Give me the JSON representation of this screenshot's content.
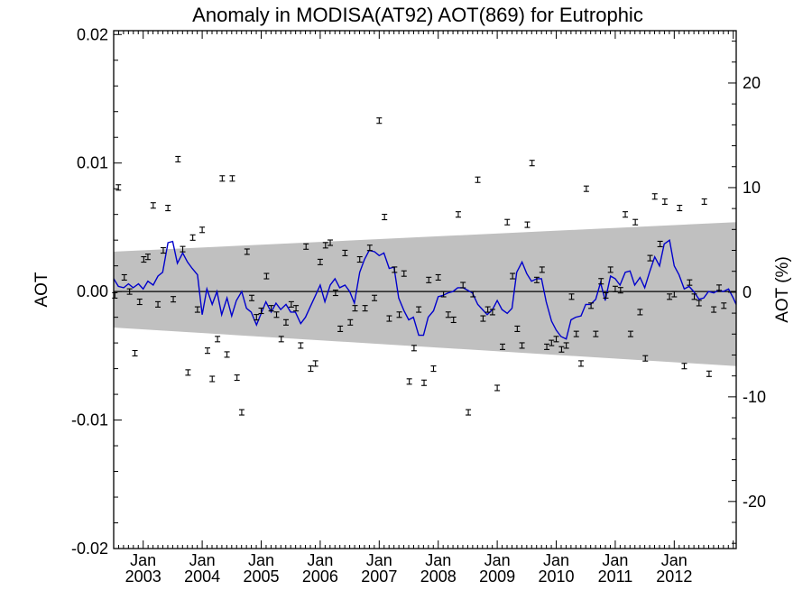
{
  "chart_data": {
    "type": "scatter",
    "title": "Anomaly in MODISA(AT92) AOT(869) for Eutrophic",
    "ylabel": "AOT",
    "y2label": "AOT (%)",
    "xlim": [
      2002.5,
      2013.05
    ],
    "ylim": [
      -0.02,
      0.0203
    ],
    "y2lim": [
      -24.5,
      25
    ],
    "y_ticks": [
      "0.02",
      "0.01",
      "0.00",
      "-0.01",
      "-0.02"
    ],
    "y2_ticks": [
      "20",
      "10",
      "0",
      "-10",
      "-20"
    ],
    "x_ticks": [
      {
        "year": 2003,
        "month": "Jan",
        "label": "2003"
      },
      {
        "year": 2004,
        "month": "Jan",
        "label": "2004"
      },
      {
        "year": 2005,
        "month": "Jan",
        "label": "2005"
      },
      {
        "year": 2006,
        "month": "Jan",
        "label": "2006"
      },
      {
        "year": 2007,
        "month": "Jan",
        "label": "2007"
      },
      {
        "year": 2008,
        "month": "Jan",
        "label": "2008"
      },
      {
        "year": 2009,
        "month": "Jan",
        "label": "2009"
      },
      {
        "year": 2010,
        "month": "Jan",
        "label": "2010"
      },
      {
        "year": 2011,
        "month": "Jan",
        "label": "2011"
      },
      {
        "year": 2012,
        "month": "Jan",
        "label": "2012"
      }
    ],
    "band": {
      "start_upper": 0.0031,
      "start_lower": -0.0028,
      "end_upper": 0.0054,
      "end_lower": -0.0058,
      "color": "#c0c0c0"
    },
    "series": [
      {
        "kind": "points_with_errorbars",
        "color": "#000000",
        "points": [
          [
            2002.52,
            -0.0003
          ],
          [
            2002.58,
            0.0081
          ],
          [
            2002.68,
            0.0011
          ],
          [
            2002.77,
            0.0
          ],
          [
            2002.86,
            -0.0048
          ],
          [
            2002.94,
            -0.0008
          ],
          [
            2003.01,
            0.0025
          ],
          [
            2003.08,
            0.0027
          ],
          [
            2003.17,
            0.0067
          ],
          [
            2003.25,
            -0.001
          ],
          [
            2003.34,
            0.0032
          ],
          [
            2003.42,
            0.0065
          ],
          [
            2003.51,
            -0.0006
          ],
          [
            2003.59,
            0.0103
          ],
          [
            2003.67,
            0.0033
          ],
          [
            2003.76,
            -0.0063
          ],
          [
            2003.84,
            0.0042
          ],
          [
            2003.92,
            -0.0014
          ],
          [
            2004.0,
            0.0048
          ],
          [
            2004.09,
            -0.0046
          ],
          [
            2004.17,
            -0.0068
          ],
          [
            2004.26,
            -0.0037
          ],
          [
            2004.34,
            0.0088
          ],
          [
            2004.42,
            -0.0049
          ],
          [
            2004.51,
            0.0088
          ],
          [
            2004.59,
            -0.0067
          ],
          [
            2004.67,
            -0.0094
          ],
          [
            2004.76,
            0.0031
          ],
          [
            2004.84,
            -0.0005
          ],
          [
            2004.92,
            -0.002
          ],
          [
            2005.0,
            -0.0015
          ],
          [
            2005.09,
            0.0012
          ],
          [
            2005.17,
            -0.0013
          ],
          [
            2005.26,
            -0.0018
          ],
          [
            2005.34,
            -0.0037
          ],
          [
            2005.42,
            -0.0024
          ],
          [
            2005.51,
            -0.001
          ],
          [
            2005.59,
            -0.0013
          ],
          [
            2005.67,
            -0.0042
          ],
          [
            2005.76,
            0.0035
          ],
          [
            2005.84,
            -0.006
          ],
          [
            2005.92,
            -0.0056
          ],
          [
            2006.0,
            0.0023
          ],
          [
            2006.09,
            0.0036
          ],
          [
            2006.17,
            0.0038
          ],
          [
            2006.26,
            -0.0001
          ],
          [
            2006.34,
            -0.0029
          ],
          [
            2006.42,
            0.003
          ],
          [
            2006.51,
            -0.0024
          ],
          [
            2006.59,
            -0.0013
          ],
          [
            2006.67,
            0.0025
          ],
          [
            2006.76,
            -0.0013
          ],
          [
            2006.84,
            0.0034
          ],
          [
            2006.92,
            -0.0005
          ],
          [
            2007.0,
            0.0133
          ],
          [
            2007.09,
            0.0058
          ],
          [
            2007.17,
            -0.0021
          ],
          [
            2007.26,
            0.0017
          ],
          [
            2007.34,
            -0.0018
          ],
          [
            2007.42,
            0.0014
          ],
          [
            2007.51,
            -0.007
          ],
          [
            2007.59,
            -0.0044
          ],
          [
            2007.67,
            -0.0014
          ],
          [
            2007.76,
            -0.0071
          ],
          [
            2007.84,
            0.0009
          ],
          [
            2007.92,
            -0.006
          ],
          [
            2008.0,
            0.0011
          ],
          [
            2008.09,
            -0.0002
          ],
          [
            2008.17,
            -0.0018
          ],
          [
            2008.26,
            -0.0022
          ],
          [
            2008.34,
            0.006
          ],
          [
            2008.42,
            0.0005
          ],
          [
            2008.51,
            -0.0094
          ],
          [
            2008.59,
            -0.0002
          ],
          [
            2008.67,
            0.0087
          ],
          [
            2008.76,
            -0.0021
          ],
          [
            2008.84,
            -0.0014
          ],
          [
            2008.92,
            -0.0016
          ],
          [
            2009.0,
            -0.0075
          ],
          [
            2009.09,
            -0.0043
          ],
          [
            2009.17,
            0.0054
          ],
          [
            2009.26,
            0.0012
          ],
          [
            2009.34,
            -0.0029
          ],
          [
            2009.42,
            -0.0042
          ],
          [
            2009.51,
            0.0052
          ],
          [
            2009.59,
            0.01
          ],
          [
            2009.67,
            0.0009
          ],
          [
            2009.76,
            0.0017
          ],
          [
            2009.84,
            -0.0043
          ],
          [
            2009.92,
            -0.004
          ],
          [
            2010.0,
            -0.0037
          ],
          [
            2010.09,
            -0.0045
          ],
          [
            2010.17,
            -0.0042
          ],
          [
            2010.26,
            -0.0004
          ],
          [
            2010.34,
            -0.0033
          ],
          [
            2010.42,
            -0.0056
          ],
          [
            2010.51,
            0.008
          ],
          [
            2010.59,
            -0.0011
          ],
          [
            2010.67,
            -0.0033
          ],
          [
            2010.76,
            0.0008
          ],
          [
            2010.84,
            -0.0003
          ],
          [
            2010.92,
            0.0017
          ],
          [
            2011.0,
            0.0002
          ],
          [
            2011.09,
            0.0001
          ],
          [
            2011.17,
            0.006
          ],
          [
            2011.26,
            -0.0033
          ],
          [
            2011.34,
            0.0054
          ],
          [
            2011.42,
            -0.0016
          ],
          [
            2011.51,
            -0.0052
          ],
          [
            2011.59,
            0.0026
          ],
          [
            2011.67,
            0.0074
          ],
          [
            2011.76,
            0.0037
          ],
          [
            2011.84,
            0.007
          ],
          [
            2011.92,
            -0.0004
          ],
          [
            2012.0,
            -0.0002
          ],
          [
            2012.09,
            0.0065
          ],
          [
            2012.17,
            -0.0058
          ],
          [
            2012.26,
            0.0007
          ],
          [
            2012.34,
            -0.0004
          ],
          [
            2012.42,
            -0.0009
          ],
          [
            2012.51,
            0.007
          ],
          [
            2012.59,
            -0.0064
          ],
          [
            2012.67,
            -0.0014
          ],
          [
            2012.76,
            0.0003
          ],
          [
            2012.84,
            -0.0011
          ]
        ]
      },
      {
        "kind": "line",
        "color": "#0000cc",
        "points": [
          [
            2002.5,
            0.001
          ],
          [
            2002.58,
            0.0004
          ],
          [
            2002.67,
            0.0003
          ],
          [
            2002.75,
            0.0006
          ],
          [
            2002.83,
            0.0003
          ],
          [
            2002.92,
            0.0006
          ],
          [
            2003.0,
            0.0002
          ],
          [
            2003.08,
            0.0008
          ],
          [
            2003.17,
            0.0005
          ],
          [
            2003.25,
            0.0012
          ],
          [
            2003.33,
            0.0015
          ],
          [
            2003.42,
            0.0038
          ],
          [
            2003.5,
            0.0039
          ],
          [
            2003.58,
            0.0022
          ],
          [
            2003.67,
            0.003
          ],
          [
            2003.75,
            0.0023
          ],
          [
            2003.83,
            0.0018
          ],
          [
            2003.92,
            0.0013
          ],
          [
            2004.0,
            -0.0018
          ],
          [
            2004.08,
            0.0002
          ],
          [
            2004.17,
            -0.001
          ],
          [
            2004.25,
            0.0
          ],
          [
            2004.33,
            -0.0018
          ],
          [
            2004.42,
            -0.0005
          ],
          [
            2004.5,
            -0.0019
          ],
          [
            2004.58,
            -0.0007
          ],
          [
            2004.67,
            0.0
          ],
          [
            2004.75,
            -0.0013
          ],
          [
            2004.83,
            -0.0016
          ],
          [
            2004.92,
            -0.0026
          ],
          [
            2005.0,
            -0.0017
          ],
          [
            2005.08,
            -0.0008
          ],
          [
            2005.17,
            -0.0016
          ],
          [
            2005.25,
            -0.0009
          ],
          [
            2005.33,
            -0.0014
          ],
          [
            2005.42,
            -0.001
          ],
          [
            2005.5,
            -0.0016
          ],
          [
            2005.58,
            -0.0016
          ],
          [
            2005.67,
            -0.0025
          ],
          [
            2005.75,
            -0.002
          ],
          [
            2005.83,
            -0.0012
          ],
          [
            2005.92,
            -0.0003
          ],
          [
            2006.0,
            0.0005
          ],
          [
            2006.08,
            -0.0008
          ],
          [
            2006.17,
            0.0005
          ],
          [
            2006.25,
            0.001
          ],
          [
            2006.33,
            0.0003
          ],
          [
            2006.42,
            0.0005
          ],
          [
            2006.5,
            0.0
          ],
          [
            2006.58,
            -0.0009
          ],
          [
            2006.67,
            0.0015
          ],
          [
            2006.75,
            0.0025
          ],
          [
            2006.83,
            0.0032
          ],
          [
            2006.92,
            0.0031
          ],
          [
            2007.0,
            0.0028
          ],
          [
            2007.08,
            0.003
          ],
          [
            2007.17,
            0.0018
          ],
          [
            2007.25,
            0.0019
          ],
          [
            2007.33,
            -0.0005
          ],
          [
            2007.42,
            -0.0015
          ],
          [
            2007.5,
            -0.0022
          ],
          [
            2007.58,
            -0.002
          ],
          [
            2007.67,
            -0.0034
          ],
          [
            2007.75,
            -0.0034
          ],
          [
            2007.83,
            -0.002
          ],
          [
            2007.92,
            -0.0015
          ],
          [
            2008.0,
            -0.0004
          ],
          [
            2008.08,
            -0.0003
          ],
          [
            2008.17,
            -0.0001
          ],
          [
            2008.25,
            0.0
          ],
          [
            2008.33,
            0.0003
          ],
          [
            2008.42,
            0.0003
          ],
          [
            2008.5,
            0.0001
          ],
          [
            2008.58,
            -0.0001
          ],
          [
            2008.67,
            -0.001
          ],
          [
            2008.75,
            -0.0014
          ],
          [
            2008.83,
            -0.0018
          ],
          [
            2008.92,
            -0.0014
          ],
          [
            2009.0,
            -0.0007
          ],
          [
            2009.08,
            -0.0014
          ],
          [
            2009.17,
            -0.0017
          ],
          [
            2009.25,
            -0.0013
          ],
          [
            2009.33,
            0.0015
          ],
          [
            2009.42,
            0.0023
          ],
          [
            2009.5,
            0.0014
          ],
          [
            2009.58,
            0.0008
          ],
          [
            2009.67,
            0.001
          ],
          [
            2009.75,
            0.001
          ],
          [
            2009.83,
            -0.0008
          ],
          [
            2009.92,
            -0.0023
          ],
          [
            2010.0,
            -0.003
          ],
          [
            2010.08,
            -0.0035
          ],
          [
            2010.17,
            -0.0037
          ],
          [
            2010.25,
            -0.0022
          ],
          [
            2010.33,
            -0.002
          ],
          [
            2010.42,
            -0.0019
          ],
          [
            2010.5,
            -0.001
          ],
          [
            2010.58,
            -0.001
          ],
          [
            2010.67,
            -0.0006
          ],
          [
            2010.75,
            0.0007
          ],
          [
            2010.83,
            -0.0007
          ],
          [
            2010.92,
            0.0012
          ],
          [
            2011.0,
            0.001
          ],
          [
            2011.08,
            0.0005
          ],
          [
            2011.17,
            0.0015
          ],
          [
            2011.25,
            0.0016
          ],
          [
            2011.33,
            0.0005
          ],
          [
            2011.42,
            0.0011
          ],
          [
            2011.5,
            0.0003
          ],
          [
            2011.58,
            0.0015
          ],
          [
            2011.67,
            0.0027
          ],
          [
            2011.75,
            0.002
          ],
          [
            2011.83,
            0.0037
          ],
          [
            2011.92,
            0.004
          ],
          [
            2012.0,
            0.002
          ],
          [
            2012.08,
            0.0013
          ],
          [
            2012.17,
            0.0002
          ],
          [
            2012.25,
            0.0004
          ],
          [
            2012.33,
            0.0
          ],
          [
            2012.42,
            -0.0006
          ],
          [
            2012.5,
            -0.0005
          ],
          [
            2012.58,
            0.0
          ],
          [
            2012.67,
            -0.0001
          ],
          [
            2012.75,
            0.0001
          ],
          [
            2012.83,
            0.0
          ],
          [
            2012.92,
            0.0002
          ],
          [
            2013.0,
            -0.0005
          ],
          [
            2013.05,
            -0.001
          ]
        ]
      }
    ],
    "grid": false
  }
}
